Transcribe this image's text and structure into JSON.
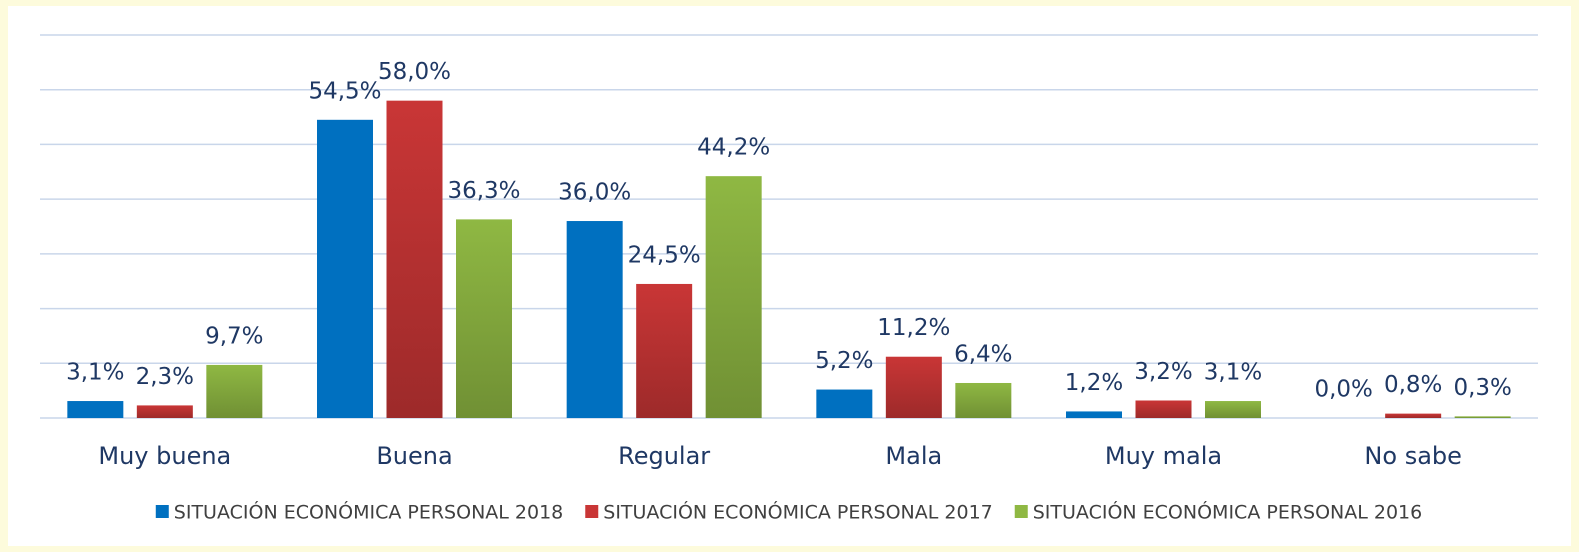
{
  "chart_data": {
    "type": "bar",
    "categories": [
      "Muy buena",
      "Buena",
      "Regular",
      "Mala",
      "Muy mala",
      "No sabe"
    ],
    "series": [
      {
        "name": "SITUACIÓN ECONÓMICA PERSONAL 2018",
        "color": "#0070c0",
        "values": [
          3.1,
          54.5,
          36.0,
          5.2,
          1.2,
          0.0
        ],
        "value_labels": [
          "3,1%",
          "54,5%",
          "36,0%",
          "5,2%",
          "1,2%",
          "0,0%"
        ]
      },
      {
        "name": "SITUACIÓN ECONÓMICA PERSONAL 2017",
        "color": "#c93636",
        "values": [
          2.3,
          58.0,
          24.5,
          11.2,
          3.2,
          0.8
        ],
        "value_labels": [
          "2,3%",
          "58,0%",
          "24,5%",
          "11,2%",
          "3,2%",
          "0,8%"
        ]
      },
      {
        "name": "SITUACIÓN ECONÓMICA PERSONAL 2016",
        "color": "#8fb843",
        "values": [
          9.7,
          36.3,
          44.2,
          6.4,
          3.1,
          0.3
        ],
        "value_labels": [
          "9,7%",
          "36,3%",
          "44,2%",
          "6,4%",
          "3,1%",
          "0,3%"
        ]
      }
    ],
    "ylim": [
      0,
      70
    ],
    "yticks": [
      0,
      10,
      20,
      30,
      40,
      50,
      60,
      70
    ],
    "grid": true,
    "legend": "bottom"
  }
}
